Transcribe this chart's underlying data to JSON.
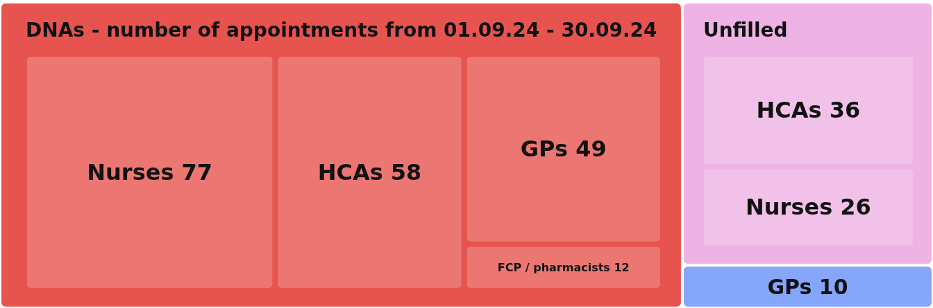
{
  "chart_data": {
    "type": "other",
    "categories": [
      "Nurses",
      "HCAs",
      "GPs",
      "FCP / pharmacists",
      "HCAs",
      "Nurses",
      "GPs"
    ],
    "series": [
      {
        "name": "DNAs - number of appointments from 01.09.24 - 30.09.24",
        "color": "#ec7672",
        "values": [
          77,
          58,
          49,
          12,
          null,
          null,
          null
        ]
      },
      {
        "name": "Unfilled",
        "color": "#f1c1e9",
        "values": [
          null,
          null,
          null,
          null,
          36,
          26,
          null
        ]
      },
      {
        "color": "#86a6fb",
        "values": [
          null,
          null,
          null,
          null,
          null,
          null,
          10
        ]
      }
    ],
    "data_labels": true
  }
}
